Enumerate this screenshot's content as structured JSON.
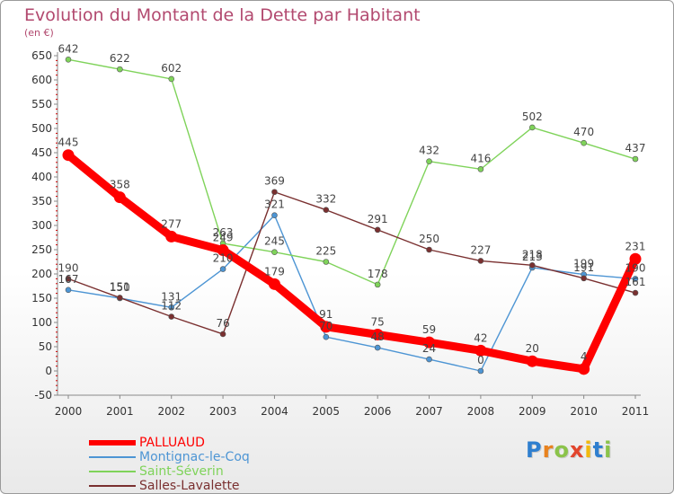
{
  "chart_data": {
    "type": "line",
    "title": "Evolution du Montant de la Dette par Habitant",
    "unit_label": "(en €)",
    "xlabel": "",
    "ylabel": "",
    "categories": [
      "2000",
      "2001",
      "2002",
      "2003",
      "2004",
      "2005",
      "2006",
      "2007",
      "2008",
      "2009",
      "2010",
      "2011"
    ],
    "ylim": [
      -50,
      650
    ],
    "yticks": [
      "-50",
      "0",
      "50",
      "100",
      "150",
      "200",
      "250",
      "300",
      "350",
      "400",
      "450",
      "500",
      "550",
      "600",
      "650"
    ],
    "grid": false,
    "legend_position": "bottom-left",
    "series": [
      {
        "name": "PALLUAUD",
        "color": "#ff0000",
        "values": [
          445,
          358,
          277,
          249,
          179,
          91,
          75,
          59,
          42,
          20,
          4,
          231
        ],
        "labels": [
          "445",
          "358",
          "277",
          "249",
          "179",
          "91",
          "75",
          "59",
          "42",
          "20",
          "4",
          "231"
        ]
      },
      {
        "name": "Montignac-le-Coq",
        "color": "#4d95d4",
        "values": [
          167,
          150,
          131,
          210,
          321,
          70,
          48,
          24,
          0,
          213,
          199,
          190
        ],
        "labels": [
          "167",
          "150",
          "131",
          "210",
          "321",
          "70",
          "48",
          "24",
          "0",
          "213",
          "199",
          "190"
        ]
      },
      {
        "name": "Saint-Séverin",
        "color": "#7fd35a",
        "values": [
          642,
          622,
          602,
          263,
          245,
          225,
          178,
          432,
          416,
          502,
          470,
          437
        ],
        "labels": [
          "642",
          "622",
          "602",
          "263",
          "245",
          "225",
          "178",
          "432",
          "416",
          "502",
          "470",
          "437"
        ]
      },
      {
        "name": "Salles-Lavalette",
        "color": "#7a3030",
        "values": [
          190,
          151,
          112,
          76,
          369,
          332,
          291,
          250,
          227,
          218,
          191,
          161
        ],
        "labels": [
          "190",
          "151",
          "112",
          "76",
          "369",
          "332",
          "291",
          "250",
          "227",
          "218",
          "191",
          "161"
        ]
      }
    ],
    "legend_colors": {
      "PALLUAUD": "#ff0000",
      "Montignac-le-Coq": "#4d95d4",
      "Saint-Séverin": "#7fd35a",
      "Salles-Lavalette": "#7a3030"
    }
  },
  "colors": {
    "title": "#b2496f",
    "axis": "#888888",
    "tick_red": "#cc0000",
    "label_text": "#444444"
  },
  "legend": {
    "items": [
      {
        "label": "PALLUAUD",
        "color": "#ff0000"
      },
      {
        "label": "Montignac-le-Coq",
        "color": "#4d95d4"
      },
      {
        "label": "Saint-Séverin",
        "color": "#7fd35a"
      },
      {
        "label": "Salles-Lavalette",
        "color": "#7a3030"
      }
    ]
  },
  "logo": {
    "letters": [
      "P",
      "r",
      "o",
      "x",
      "i",
      "t",
      "i"
    ],
    "colors": [
      "#2f7fcf",
      "#e8821e",
      "#8bc34a",
      "#e2452d",
      "#f2b90c",
      "#2f7fcf",
      "#8bc34a"
    ]
  }
}
